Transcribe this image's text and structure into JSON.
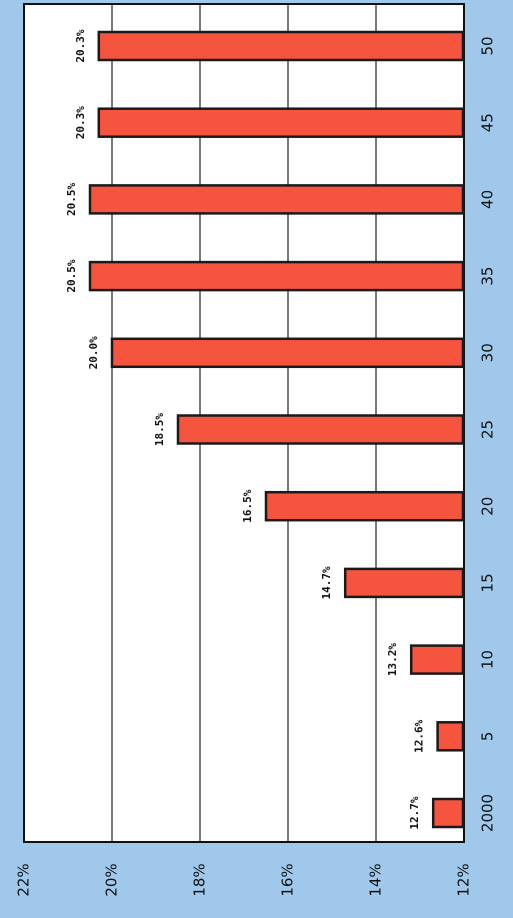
{
  "chart_data": {
    "type": "bar",
    "orientation": "vertical-bars-rotated-90",
    "categories": [
      "2000",
      "5",
      "10",
      "15",
      "20",
      "25",
      "30",
      "35",
      "40",
      "45",
      "50"
    ],
    "values": [
      12.7,
      12.6,
      13.2,
      14.7,
      16.5,
      18.5,
      20.0,
      20.5,
      20.5,
      20.3,
      20.3
    ],
    "data_labels": [
      "12.7%",
      "12.6%",
      "13.2%",
      "14.7%",
      "16.5%",
      "18.5%",
      "20.0%",
      "20.5%",
      "20.5%",
      "20.3%",
      "20.3%"
    ],
    "ylim": [
      12,
      22
    ],
    "y_ticks": [
      12,
      14,
      16,
      18,
      20,
      22
    ],
    "y_tick_labels": [
      "12%",
      "14%",
      "16%",
      "18%",
      "20%",
      "22%"
    ],
    "grid": true,
    "legend": "none",
    "colors": {
      "bar_fill": "#f5553f",
      "bar_stroke": "#1a1a1a",
      "plot_background": "#ffffff",
      "page_background": "#9fc8ea",
      "gridline": "#222222"
    }
  }
}
